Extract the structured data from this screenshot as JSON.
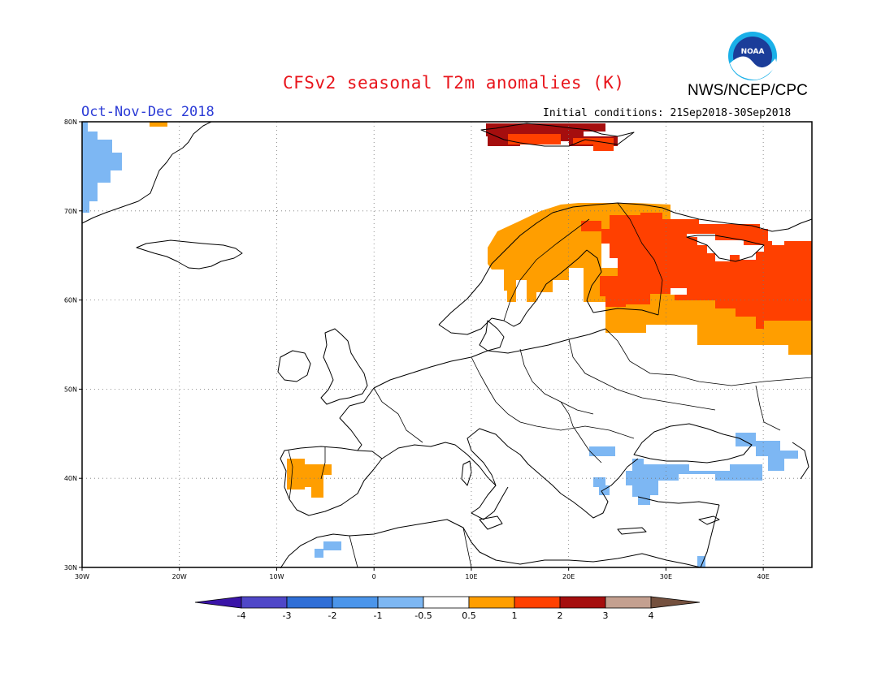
{
  "header": {
    "title": "CFSv2 seasonal T2m anomalies (K)",
    "org": "NWS/NCEP/CPC",
    "season": "Oct-Nov-Dec 2018",
    "initial_conditions": "Initial conditions: 21Sep2018-30Sep2018"
  },
  "logo": {
    "text": "NOAA",
    "icon": "noaa-logo"
  },
  "map": {
    "lat_ticks": [
      "80N",
      "70N",
      "60N",
      "50N",
      "40N",
      "30N"
    ],
    "lon_ticks": [
      "30W",
      "20W",
      "10W",
      "0",
      "10E",
      "20E",
      "30E",
      "40E"
    ],
    "lon_range": [
      -30,
      45
    ],
    "lat_range": [
      30,
      80
    ],
    "grid": "dotted"
  },
  "colorbar": {
    "labels": [
      "-4",
      "-3",
      "-2",
      "-1",
      "-0.5",
      "0.5",
      "1",
      "2",
      "3",
      "4"
    ],
    "colors": [
      "#3a14a8",
      "#4f47c8",
      "#2f6ed6",
      "#4b95ea",
      "#7db7f3",
      "#ffffff",
      "#ff9e00",
      "#ff4000",
      "#a50e0e",
      "#c4a090",
      "#74503e"
    ]
  },
  "anomalies": {
    "unit": "K",
    "colors": {
      "weak_cold": "#7db7f3",
      "warm_1": "#ff9e00",
      "warm_2": "#ff4000",
      "warm_3": "#a50e0e"
    }
  }
}
